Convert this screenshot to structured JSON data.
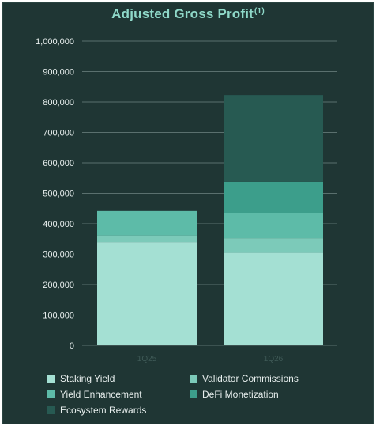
{
  "chart_data": {
    "type": "bar",
    "stacked": true,
    "title": "Adjusted Gross Profit",
    "title_superscript": "(1)",
    "xlabel": "",
    "ylabel": "",
    "categories": [
      "1Q25",
      "1Q26"
    ],
    "ylim": [
      0,
      1000000
    ],
    "yticks": [
      0,
      100000,
      200000,
      300000,
      400000,
      500000,
      600000,
      700000,
      800000,
      900000,
      1000000
    ],
    "ytick_labels": [
      "0",
      "100,000",
      "200,000",
      "300,000",
      "400,000",
      "500,000",
      "600,000",
      "700,000",
      "800,000",
      "900,000",
      "1,000,000"
    ],
    "grid": true,
    "legend_position": "bottom",
    "series": [
      {
        "name": "Staking Yield",
        "color": "#a4e0d3",
        "values": [
          340000,
          305000
        ]
      },
      {
        "name": "Validator Commissions",
        "color": "#7ccab9",
        "values": [
          22000,
          48000
        ]
      },
      {
        "name": "Yield Enhancement",
        "color": "#5dbba8",
        "values": [
          80000,
          82000
        ]
      },
      {
        "name": "DeFi Monetization",
        "color": "#3c9e8b",
        "values": [
          0,
          103000
        ]
      },
      {
        "name": "Ecosystem Rewards",
        "color": "#275a52",
        "values": [
          0,
          285000
        ]
      }
    ]
  },
  "colors": {
    "background": "#1f3634",
    "title": "#8fd9c9",
    "axis_text": "#e8efee",
    "gridline": "#6f8482"
  }
}
